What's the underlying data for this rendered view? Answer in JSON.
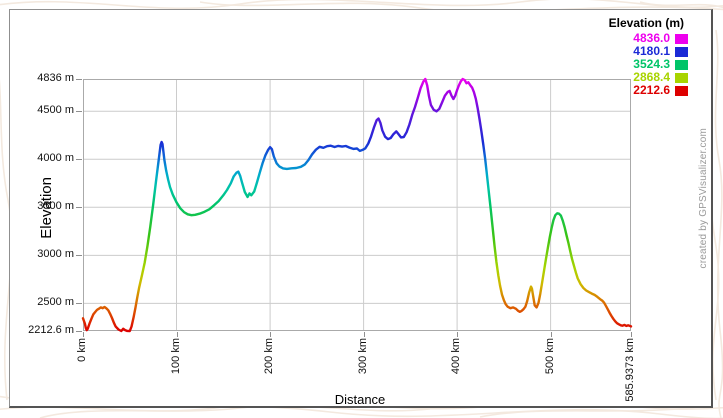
{
  "watermark": {
    "label": "created by GPSVisualizer.com"
  },
  "legend": {
    "title": "Elevation (m)",
    "entries": [
      {
        "label": "4836.0",
        "color": "#ee00ee"
      },
      {
        "label": "4180.1",
        "color": "#1b2ad6"
      },
      {
        "label": "3524.3",
        "color": "#00c468"
      },
      {
        "label": "2868.4",
        "color": "#a8d400"
      },
      {
        "label": "2212.6",
        "color": "#dd0000"
      }
    ]
  },
  "chart_data": {
    "type": "line",
    "title": "",
    "xlabel": "Distance",
    "ylabel": "Elevation",
    "x_unit": "km",
    "y_unit": "m",
    "xlim": [
      0,
      585.9373
    ],
    "ylim": [
      2212.6,
      4836
    ],
    "grid": true,
    "legend_position": "top-right",
    "x_ticks": [
      {
        "value": 0,
        "label": "0 km"
      },
      {
        "value": 100,
        "label": "100 km"
      },
      {
        "value": 200,
        "label": "200 km"
      },
      {
        "value": 300,
        "label": "300 km"
      },
      {
        "value": 400,
        "label": "400 km"
      },
      {
        "value": 500,
        "label": "500 km"
      },
      {
        "value": 585.9373,
        "label": "585.9373 km"
      }
    ],
    "y_ticks": [
      {
        "value": 4836,
        "label": "4836 m"
      },
      {
        "value": 4500,
        "label": "4500 m"
      },
      {
        "value": 4000,
        "label": "4000 m"
      },
      {
        "value": 3500,
        "label": "3500 m"
      },
      {
        "value": 3000,
        "label": "3000 m"
      },
      {
        "value": 2500,
        "label": "2500 m"
      },
      {
        "value": 2212.6,
        "label": "2212.6 m"
      }
    ],
    "color_scale": [
      {
        "elev": 4836,
        "color": "#ee00ee"
      },
      {
        "elev": 4700,
        "color": "#aa00e6"
      },
      {
        "elev": 4500,
        "color": "#6614dd"
      },
      {
        "elev": 4180,
        "color": "#1b2ad6"
      },
      {
        "elev": 4000,
        "color": "#0c6fd6"
      },
      {
        "elev": 3850,
        "color": "#00aacc"
      },
      {
        "elev": 3700,
        "color": "#00c4a6"
      },
      {
        "elev": 3524,
        "color": "#00c468"
      },
      {
        "elev": 3200,
        "color": "#39c414"
      },
      {
        "elev": 2868,
        "color": "#a8d400"
      },
      {
        "elev": 2700,
        "color": "#cfba00"
      },
      {
        "elev": 2550,
        "color": "#d97f00"
      },
      {
        "elev": 2400,
        "color": "#dd4a00"
      },
      {
        "elev": 2212.6,
        "color": "#dd0000"
      }
    ],
    "series": [
      {
        "name": "elevation-profile",
        "points": [
          [
            0,
            2345
          ],
          [
            2,
            2290
          ],
          [
            3,
            2245
          ],
          [
            4,
            2222
          ],
          [
            5,
            2235
          ],
          [
            7,
            2290
          ],
          [
            9,
            2340
          ],
          [
            11,
            2385
          ],
          [
            13,
            2410
          ],
          [
            15,
            2432
          ],
          [
            17,
            2445
          ],
          [
            19,
            2458
          ],
          [
            21,
            2450
          ],
          [
            23,
            2462
          ],
          [
            25,
            2448
          ],
          [
            27,
            2428
          ],
          [
            29,
            2392
          ],
          [
            31,
            2348
          ],
          [
            33,
            2298
          ],
          [
            35,
            2258
          ],
          [
            38,
            2228
          ],
          [
            41,
            2213
          ],
          [
            43,
            2235
          ],
          [
            45,
            2222
          ],
          [
            47,
            2214
          ],
          [
            50,
            2213
          ],
          [
            52,
            2262
          ],
          [
            54,
            2350
          ],
          [
            56,
            2452
          ],
          [
            58,
            2558
          ],
          [
            60,
            2662
          ],
          [
            63,
            2790
          ],
          [
            66,
            2925
          ],
          [
            69,
            3100
          ],
          [
            72,
            3300
          ],
          [
            75,
            3522
          ],
          [
            78,
            3762
          ],
          [
            81,
            4002
          ],
          [
            83,
            4150
          ],
          [
            84,
            4180
          ],
          [
            85,
            4158
          ],
          [
            86,
            4080
          ],
          [
            87,
            3992
          ],
          [
            89,
            3880
          ],
          [
            91,
            3790
          ],
          [
            93,
            3712
          ],
          [
            96,
            3632
          ],
          [
            100,
            3552
          ],
          [
            104,
            3490
          ],
          [
            108,
            3450
          ],
          [
            112,
            3428
          ],
          [
            116,
            3418
          ],
          [
            120,
            3422
          ],
          [
            125,
            3435
          ],
          [
            130,
            3455
          ],
          [
            135,
            3480
          ],
          [
            140,
            3520
          ],
          [
            145,
            3565
          ],
          [
            150,
            3625
          ],
          [
            154,
            3680
          ],
          [
            158,
            3750
          ],
          [
            161,
            3820
          ],
          [
            164,
            3860
          ],
          [
            166,
            3872
          ],
          [
            168,
            3830
          ],
          [
            170,
            3760
          ],
          [
            173,
            3660
          ],
          [
            176,
            3608
          ],
          [
            178,
            3645
          ],
          [
            180,
            3625
          ],
          [
            183,
            3665
          ],
          [
            186,
            3760
          ],
          [
            189,
            3862
          ],
          [
            192,
            3960
          ],
          [
            195,
            4042
          ],
          [
            198,
            4100
          ],
          [
            200,
            4126
          ],
          [
            202,
            4105
          ],
          [
            204,
            4030
          ],
          [
            207,
            3958
          ],
          [
            210,
            3925
          ],
          [
            214,
            3905
          ],
          [
            218,
            3900
          ],
          [
            223,
            3906
          ],
          [
            228,
            3910
          ],
          [
            233,
            3922
          ],
          [
            237,
            3945
          ],
          [
            241,
            3992
          ],
          [
            245,
            4052
          ],
          [
            249,
            4100
          ],
          [
            253,
            4130
          ],
          [
            257,
            4120
          ],
          [
            261,
            4136
          ],
          [
            265,
            4142
          ],
          [
            269,
            4128
          ],
          [
            273,
            4140
          ],
          [
            277,
            4132
          ],
          [
            281,
            4138
          ],
          [
            285,
            4122
          ],
          [
            289,
            4108
          ],
          [
            293,
            4112
          ],
          [
            296,
            4088
          ],
          [
            299,
            4098
          ],
          [
            302,
            4115
          ],
          [
            305,
            4165
          ],
          [
            308,
            4238
          ],
          [
            311,
            4330
          ],
          [
            314,
            4408
          ],
          [
            316,
            4425
          ],
          [
            318,
            4380
          ],
          [
            320,
            4302
          ],
          [
            323,
            4235
          ],
          [
            326,
            4210
          ],
          [
            329,
            4222
          ],
          [
            332,
            4262
          ],
          [
            335,
            4290
          ],
          [
            337,
            4265
          ],
          [
            340,
            4228
          ],
          [
            343,
            4232
          ],
          [
            346,
            4282
          ],
          [
            349,
            4362
          ],
          [
            352,
            4462
          ],
          [
            355,
            4545
          ],
          [
            358,
            4640
          ],
          [
            361,
            4740
          ],
          [
            364,
            4810
          ],
          [
            366,
            4836
          ],
          [
            368,
            4768
          ],
          [
            370,
            4655
          ],
          [
            372,
            4565
          ],
          [
            375,
            4515
          ],
          [
            378,
            4500
          ],
          [
            381,
            4525
          ],
          [
            384,
            4592
          ],
          [
            387,
            4662
          ],
          [
            390,
            4702
          ],
          [
            392,
            4712
          ],
          [
            394,
            4662
          ],
          [
            396,
            4628
          ],
          [
            398,
            4662
          ],
          [
            400,
            4722
          ],
          [
            402,
            4772
          ],
          [
            404,
            4812
          ],
          [
            406,
            4836
          ],
          [
            408,
            4826
          ],
          [
            410,
            4792
          ],
          [
            412,
            4802
          ],
          [
            414,
            4772
          ],
          [
            416,
            4746
          ],
          [
            418,
            4700
          ],
          [
            420,
            4630
          ],
          [
            422,
            4530
          ],
          [
            424,
            4420
          ],
          [
            426,
            4292
          ],
          [
            428,
            4152
          ],
          [
            430,
            4002
          ],
          [
            432,
            3832
          ],
          [
            434,
            3652
          ],
          [
            436,
            3472
          ],
          [
            438,
            3292
          ],
          [
            440,
            3102
          ],
          [
            442,
            2932
          ],
          [
            444,
            2792
          ],
          [
            446,
            2682
          ],
          [
            448,
            2592
          ],
          [
            450,
            2532
          ],
          [
            452,
            2492
          ],
          [
            454,
            2466
          ],
          [
            457,
            2450
          ],
          [
            460,
            2458
          ],
          [
            463,
            2444
          ],
          [
            465,
            2424
          ],
          [
            467,
            2412
          ],
          [
            469,
            2422
          ],
          [
            471,
            2440
          ],
          [
            473,
            2466
          ],
          [
            475,
            2525
          ],
          [
            477,
            2612
          ],
          [
            479,
            2675
          ],
          [
            480,
            2655
          ],
          [
            481,
            2592
          ],
          [
            483,
            2480
          ],
          [
            485,
            2458
          ],
          [
            487,
            2505
          ],
          [
            489,
            2602
          ],
          [
            491,
            2722
          ],
          [
            493,
            2845
          ],
          [
            495,
            2965
          ],
          [
            497,
            3075
          ],
          [
            499,
            3185
          ],
          [
            501,
            3285
          ],
          [
            503,
            3365
          ],
          [
            505,
            3418
          ],
          [
            507,
            3438
          ],
          [
            509,
            3434
          ],
          [
            511,
            3414
          ],
          [
            513,
            3360
          ],
          [
            515,
            3290
          ],
          [
            517,
            3210
          ],
          [
            519,
            3130
          ],
          [
            521,
            3040
          ],
          [
            523,
            2960
          ],
          [
            525,
            2890
          ],
          [
            527,
            2820
          ],
          [
            529,
            2760
          ],
          [
            532,
            2700
          ],
          [
            535,
            2660
          ],
          [
            538,
            2634
          ],
          [
            541,
            2618
          ],
          [
            544,
            2602
          ],
          [
            547,
            2588
          ],
          [
            550,
            2568
          ],
          [
            553,
            2544
          ],
          [
            555,
            2530
          ],
          [
            557,
            2510
          ],
          [
            559,
            2476
          ],
          [
            561,
            2440
          ],
          [
            563,
            2404
          ],
          [
            565,
            2370
          ],
          [
            567,
            2340
          ],
          [
            569,
            2314
          ],
          [
            571,
            2294
          ],
          [
            573,
            2282
          ],
          [
            575,
            2272
          ],
          [
            577,
            2268
          ],
          [
            579,
            2276
          ],
          [
            581,
            2266
          ],
          [
            583,
            2272
          ],
          [
            585.94,
            2260
          ]
        ]
      }
    ]
  }
}
